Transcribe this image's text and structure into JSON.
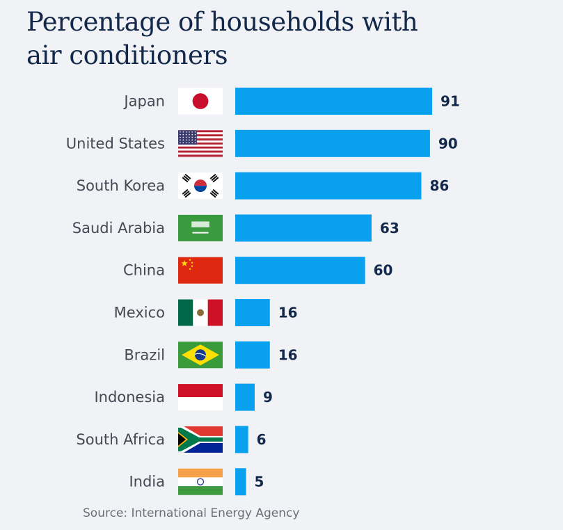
{
  "chart_data": {
    "type": "bar",
    "orientation": "horizontal",
    "title": "Percentage of households with air conditioners",
    "xlabel": "",
    "ylabel": "",
    "xlim": [
      0,
      100
    ],
    "grid": false,
    "legend": "none",
    "bar_color": "#0aa0f0",
    "categories": [
      "Japan",
      "United States",
      "South Korea",
      "Saudi Arabia",
      "China",
      "Mexico",
      "Brazil",
      "Indonesia",
      "South Africa",
      "India"
    ],
    "flags": [
      "japan-flag-icon",
      "united-states-flag-icon",
      "south-korea-flag-icon",
      "saudi-arabia-flag-icon",
      "china-flag-icon",
      "mexico-flag-icon",
      "brazil-flag-icon",
      "indonesia-flag-icon",
      "south-africa-flag-icon",
      "india-flag-icon"
    ],
    "values": [
      91,
      90,
      86,
      63,
      60,
      16,
      16,
      9,
      6,
      5
    ],
    "source": "Source: International Energy Agency"
  }
}
